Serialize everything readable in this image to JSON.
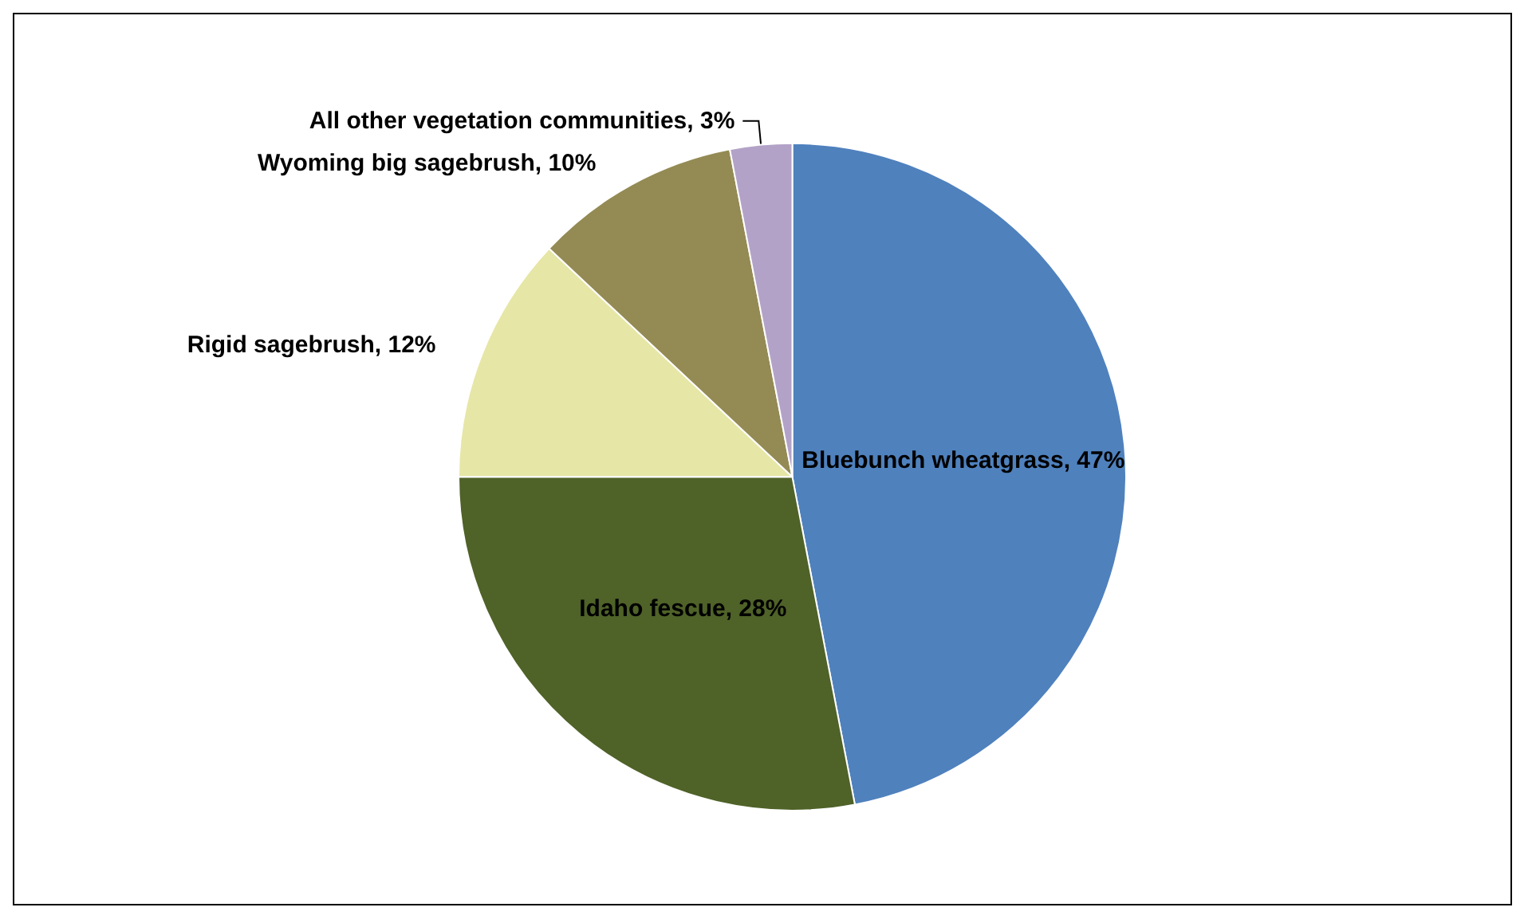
{
  "chart_data": {
    "type": "pie",
    "categories": [
      "Bluebunch wheatgrass",
      "Idaho fescue",
      "Rigid sagebrush",
      "Wyoming big sagebrush",
      "All other vegetation communities"
    ],
    "values": [
      47,
      28,
      12,
      10,
      3
    ],
    "value_labels": [
      "47%",
      "28%",
      "12%",
      "10%",
      "3%"
    ],
    "colors": [
      "#4f81bd",
      "#4f6228",
      "#e6e6a6",
      "#948a54",
      "#b3a2c7"
    ]
  }
}
